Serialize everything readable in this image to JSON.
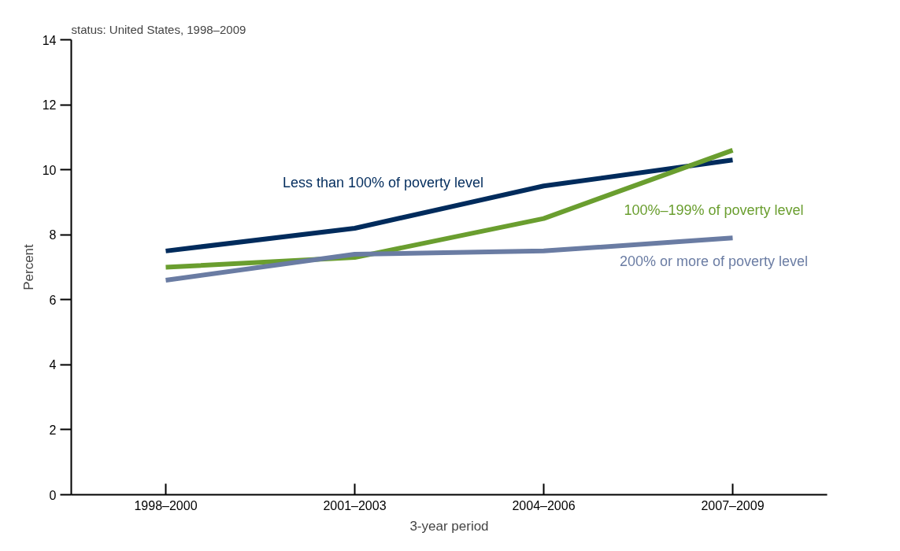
{
  "chart_data": {
    "type": "line",
    "subtitle": "status: United States, 1998–2009",
    "xlabel": "3-year period",
    "ylabel": "Percent",
    "categories": [
      "1998–2000",
      "2001–2003",
      "2004–2006",
      "2007–2009"
    ],
    "series": [
      {
        "name": "Less than 100% of poverty level",
        "color": "#002b5c",
        "values": [
          7.5,
          8.2,
          9.5,
          10.3
        ]
      },
      {
        "name": "100%–199% of poverty level",
        "color": "#6a9e2f",
        "values": [
          7.0,
          7.3,
          8.5,
          10.6
        ]
      },
      {
        "name": "200% or more of poverty level",
        "color": "#6a7ca3",
        "values": [
          6.6,
          7.4,
          7.5,
          7.9
        ]
      }
    ],
    "ylim": [
      0,
      14
    ],
    "yticks": [
      0,
      2,
      4,
      6,
      8,
      10,
      12,
      14
    ],
    "grid": false,
    "marker": "none",
    "line_style": "solid"
  }
}
